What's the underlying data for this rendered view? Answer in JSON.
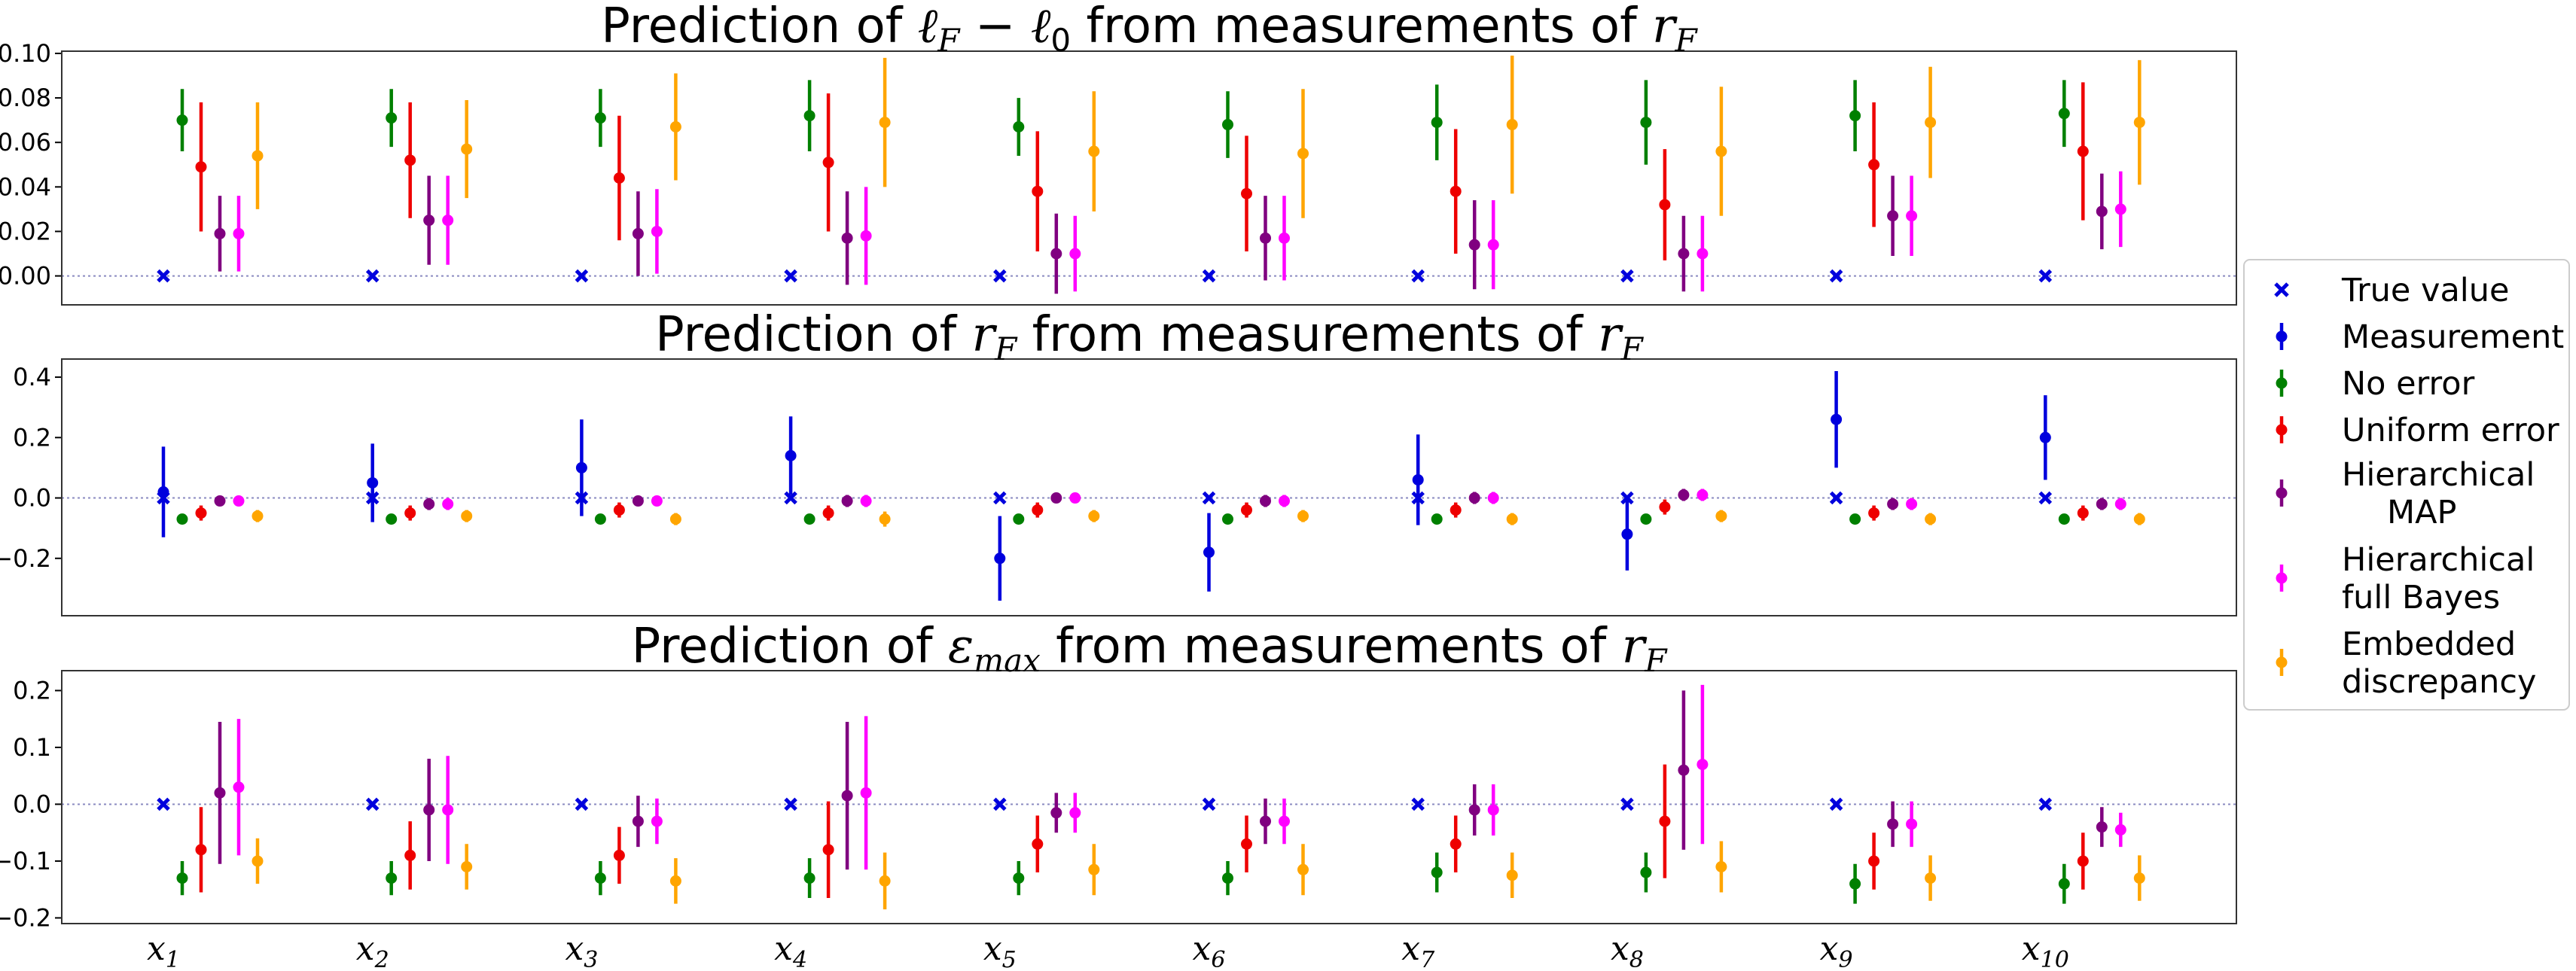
{
  "chart_data": {
    "type": "errorbar",
    "categories": [
      "x1",
      "x2",
      "x3",
      "x4",
      "x5",
      "x6",
      "x7",
      "x8",
      "x9",
      "x10"
    ],
    "category_labels": [
      {
        "base": "x",
        "sub": "1"
      },
      {
        "base": "x",
        "sub": "2"
      },
      {
        "base": "x",
        "sub": "3"
      },
      {
        "base": "x",
        "sub": "4"
      },
      {
        "base": "x",
        "sub": "5"
      },
      {
        "base": "x",
        "sub": "6"
      },
      {
        "base": "x",
        "sub": "7"
      },
      {
        "base": "x",
        "sub": "8"
      },
      {
        "base": "x",
        "sub": "9"
      },
      {
        "base": "x",
        "sub": "10"
      }
    ],
    "legend": {
      "placement": "right",
      "entries": [
        {
          "key": "true_value",
          "lines": [
            "True value"
          ],
          "color": "#0000dd",
          "marker": "x"
        },
        {
          "key": "measurement",
          "lines": [
            "Measurement"
          ],
          "color": "#0000dd",
          "marker": "o"
        },
        {
          "key": "no_error",
          "lines": [
            "No error"
          ],
          "color": "#008000",
          "marker": "o"
        },
        {
          "key": "uniform",
          "lines": [
            "Uniform error"
          ],
          "color": "#ee0000",
          "marker": "o"
        },
        {
          "key": "hier_map",
          "lines": [
            "Hierarchical",
            "MAP"
          ],
          "color": "#800080",
          "marker": "o"
        },
        {
          "key": "hier_bayes",
          "lines": [
            "Hierarchical",
            "full Bayes"
          ],
          "color": "#ff00ff",
          "marker": "o"
        },
        {
          "key": "embedded",
          "lines": [
            "Embedded",
            "discrepancy"
          ],
          "color": "#ffa500",
          "marker": "o"
        }
      ]
    },
    "panels": [
      {
        "title": {
          "pre": "Prediction of ",
          "math": "ℓ",
          "sub1": "F",
          "mid": " − ℓ",
          "sub2": "0",
          "post": " from measurements of ",
          "var": "r",
          "varsub": "F"
        },
        "ylim": [
          -0.013,
          0.101
        ],
        "yticks": [
          0.0,
          0.02,
          0.04,
          0.06,
          0.08,
          0.1
        ],
        "ytick_labels": [
          "0.00",
          "0.02",
          "0.04",
          "0.06",
          "0.08",
          "0.10"
        ],
        "series": [
          {
            "key": "true_value",
            "values": [
              0,
              0,
              0,
              0,
              0,
              0,
              0,
              0,
              0,
              0
            ]
          },
          {
            "key": "no_error",
            "values": [
              0.07,
              0.071,
              0.071,
              0.072,
              0.067,
              0.068,
              0.069,
              0.069,
              0.072,
              0.073
            ],
            "err": [
              0.014,
              0.013,
              0.013,
              0.016,
              0.013,
              0.015,
              0.017,
              0.019,
              0.016,
              0.015
            ]
          },
          {
            "key": "uniform",
            "values": [
              0.049,
              0.052,
              0.044,
              0.051,
              0.038,
              0.037,
              0.038,
              0.032,
              0.05,
              0.056
            ],
            "err": [
              0.029,
              0.026,
              0.028,
              0.031,
              0.027,
              0.026,
              0.028,
              0.025,
              0.028,
              0.031
            ]
          },
          {
            "key": "hier_map",
            "values": [
              0.019,
              0.025,
              0.019,
              0.017,
              0.01,
              0.017,
              0.014,
              0.01,
              0.027,
              0.029
            ],
            "err": [
              0.017,
              0.02,
              0.019,
              0.021,
              0.018,
              0.019,
              0.02,
              0.017,
              0.018,
              0.017
            ]
          },
          {
            "key": "hier_bayes",
            "values": [
              0.019,
              0.025,
              0.02,
              0.018,
              0.01,
              0.017,
              0.014,
              0.01,
              0.027,
              0.03
            ],
            "err": [
              0.017,
              0.02,
              0.019,
              0.022,
              0.017,
              0.019,
              0.02,
              0.017,
              0.018,
              0.017
            ]
          },
          {
            "key": "embedded",
            "values": [
              0.054,
              0.057,
              0.067,
              0.069,
              0.056,
              0.055,
              0.068,
              0.056,
              0.069,
              0.069
            ],
            "err": [
              0.024,
              0.022,
              0.024,
              0.029,
              0.027,
              0.029,
              0.031,
              0.029,
              0.025,
              0.028
            ]
          }
        ]
      },
      {
        "title": {
          "pre": "Prediction of ",
          "var": "r",
          "varsub": "F",
          "post": " from measurements of ",
          "var2": "r",
          "var2sub": "F"
        },
        "ylim": [
          -0.39,
          0.46
        ],
        "yticks": [
          -0.2,
          0.0,
          0.2,
          0.4
        ],
        "ytick_labels": [
          "−0.2",
          "0.0",
          "0.2",
          "0.4"
        ],
        "series": [
          {
            "key": "true_value",
            "values": [
              0,
              0,
              0,
              0,
              0,
              0,
              0,
              0,
              0,
              0
            ]
          },
          {
            "key": "measurement",
            "values": [
              0.02,
              0.05,
              0.1,
              0.14,
              -0.2,
              -0.18,
              0.06,
              -0.12,
              0.26,
              0.2
            ],
            "err": [
              0.15,
              0.13,
              0.16,
              0.13,
              0.14,
              0.13,
              0.15,
              0.12,
              0.16,
              0.14
            ]
          },
          {
            "key": "no_error",
            "values": [
              -0.07,
              -0.07,
              -0.07,
              -0.07,
              -0.07,
              -0.07,
              -0.07,
              -0.07,
              -0.07,
              -0.07
            ],
            "err": [
              0.01,
              0.01,
              0.01,
              0.01,
              0.01,
              0.01,
              0.01,
              0.01,
              0.01,
              0.01
            ]
          },
          {
            "key": "uniform",
            "values": [
              -0.05,
              -0.05,
              -0.04,
              -0.05,
              -0.04,
              -0.04,
              -0.04,
              -0.03,
              -0.05,
              -0.05
            ],
            "err": [
              0.025,
              0.025,
              0.025,
              0.025,
              0.025,
              0.025,
              0.025,
              0.025,
              0.025,
              0.025
            ]
          },
          {
            "key": "hier_map",
            "values": [
              -0.01,
              -0.02,
              -0.01,
              -0.01,
              0.0,
              -0.01,
              0.0,
              0.01,
              -0.02,
              -0.02
            ],
            "err": [
              0.015,
              0.02,
              0.015,
              0.02,
              0.015,
              0.02,
              0.02,
              0.02,
              0.02,
              0.02
            ]
          },
          {
            "key": "hier_bayes",
            "values": [
              -0.01,
              -0.02,
              -0.01,
              -0.01,
              0.0,
              -0.01,
              0.0,
              0.01,
              -0.02,
              -0.02
            ],
            "err": [
              0.015,
              0.02,
              0.015,
              0.02,
              0.015,
              0.02,
              0.02,
              0.02,
              0.02,
              0.02
            ]
          },
          {
            "key": "embedded",
            "values": [
              -0.06,
              -0.06,
              -0.07,
              -0.07,
              -0.06,
              -0.06,
              -0.07,
              -0.06,
              -0.07,
              -0.07
            ],
            "err": [
              0.02,
              0.02,
              0.02,
              0.025,
              0.02,
              0.02,
              0.02,
              0.02,
              0.02,
              0.02
            ]
          }
        ]
      },
      {
        "title": {
          "pre": "Prediction of ",
          "var": "ε",
          "varsub": "max",
          "post": " from measurements of ",
          "var2": "r",
          "var2sub": "F"
        },
        "ylim": [
          -0.21,
          0.235
        ],
        "yticks": [
          -0.2,
          -0.1,
          0.0,
          0.1,
          0.2
        ],
        "ytick_labels": [
          "−0.2",
          "−0.1",
          "0.0",
          "0.1",
          "0.2"
        ],
        "series": [
          {
            "key": "true_value",
            "values": [
              0,
              0,
              0,
              0,
              0,
              0,
              0,
              0,
              0,
              0
            ]
          },
          {
            "key": "no_error",
            "values": [
              -0.13,
              -0.13,
              -0.13,
              -0.13,
              -0.13,
              -0.13,
              -0.12,
              -0.12,
              -0.14,
              -0.14
            ],
            "err": [
              0.03,
              0.03,
              0.03,
              0.035,
              0.03,
              0.03,
              0.035,
              0.035,
              0.035,
              0.035
            ]
          },
          {
            "key": "uniform",
            "values": [
              -0.08,
              -0.09,
              -0.09,
              -0.08,
              -0.07,
              -0.07,
              -0.07,
              -0.03,
              -0.1,
              -0.1
            ],
            "err": [
              0.075,
              0.06,
              0.05,
              0.085,
              0.05,
              0.05,
              0.05,
              0.1,
              0.05,
              0.05
            ]
          },
          {
            "key": "hier_map",
            "values": [
              0.02,
              -0.01,
              -0.03,
              0.015,
              -0.015,
              -0.03,
              -0.01,
              0.06,
              -0.035,
              -0.04
            ],
            "err": [
              0.125,
              0.09,
              0.045,
              0.13,
              0.035,
              0.04,
              0.045,
              0.14,
              0.04,
              0.035
            ]
          },
          {
            "key": "hier_bayes",
            "values": [
              0.03,
              -0.01,
              -0.03,
              0.02,
              -0.015,
              -0.03,
              -0.01,
              0.07,
              -0.035,
              -0.045
            ],
            "err": [
              0.12,
              0.095,
              0.04,
              0.135,
              0.035,
              0.04,
              0.045,
              0.14,
              0.04,
              0.03
            ]
          },
          {
            "key": "embedded",
            "values": [
              -0.1,
              -0.11,
              -0.135,
              -0.135,
              -0.115,
              -0.115,
              -0.125,
              -0.11,
              -0.13,
              -0.13
            ],
            "err": [
              0.04,
              0.04,
              0.04,
              0.05,
              0.045,
              0.045,
              0.04,
              0.045,
              0.04,
              0.04
            ]
          }
        ]
      }
    ]
  }
}
